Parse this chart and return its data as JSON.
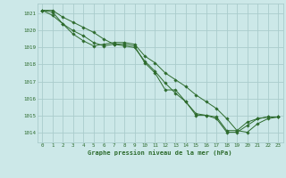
{
  "title": "Graphe pression niveau de la mer (hPa)",
  "bg_color": "#cce8e8",
  "grid_color": "#aacccc",
  "line_color": "#2d6b2d",
  "marker_color": "#2d6b2d",
  "xlim": [
    -0.5,
    23.5
  ],
  "ylim": [
    1013.4,
    1021.6
  ],
  "yticks": [
    1014,
    1015,
    1016,
    1017,
    1018,
    1019,
    1020,
    1021
  ],
  "xticks": [
    0,
    1,
    2,
    3,
    4,
    5,
    6,
    7,
    8,
    9,
    10,
    11,
    12,
    13,
    14,
    15,
    16,
    17,
    18,
    19,
    20,
    21,
    22,
    23
  ],
  "series": [
    [
      1021.2,
      1021.2,
      1020.8,
      1020.5,
      1020.2,
      1019.9,
      1019.5,
      1019.2,
      1019.1,
      1019.0,
      1018.2,
      1017.6,
      1016.9,
      1016.3,
      1015.8,
      1015.1,
      1015.0,
      1014.9,
      1014.1,
      1014.1,
      1014.6,
      1014.8,
      1014.9,
      1014.9
    ],
    [
      1021.2,
      1021.1,
      1020.4,
      1020.0,
      1019.7,
      1019.3,
      1019.1,
      1019.2,
      1019.2,
      1019.1,
      1018.1,
      1017.5,
      1016.5,
      1016.5,
      1015.8,
      1015.0,
      1015.0,
      1014.8,
      1014.0,
      1014.0,
      1014.4,
      1014.8,
      1014.9,
      1014.9
    ],
    [
      1021.2,
      1020.9,
      1020.4,
      1019.8,
      1019.4,
      1019.1,
      1019.2,
      1019.3,
      1019.3,
      1019.2,
      1018.5,
      1018.1,
      1017.5,
      1017.1,
      1016.7,
      1016.2,
      1015.8,
      1015.4,
      1014.8,
      1014.1,
      1014.0,
      1014.5,
      1014.8,
      1014.9
    ]
  ]
}
